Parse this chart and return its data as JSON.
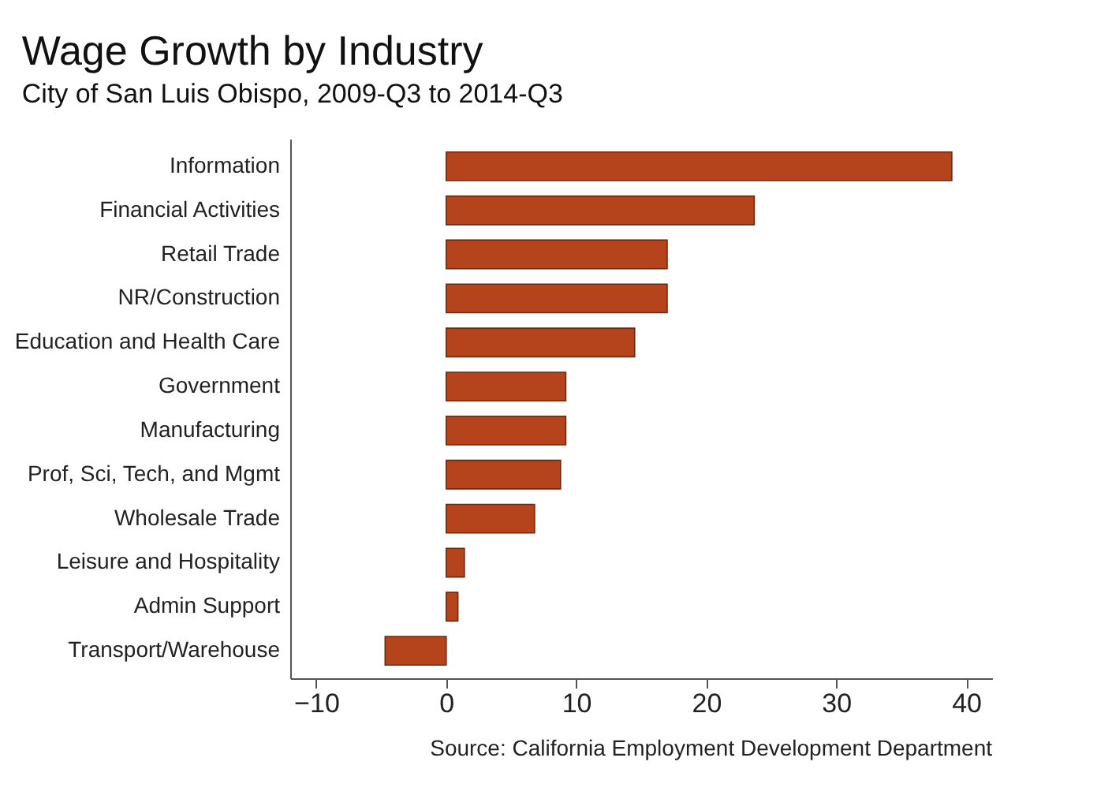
{
  "chart_data": {
    "type": "bar",
    "orientation": "horizontal",
    "title": "Wage Growth by Industry",
    "subtitle": "City of San Luis Obispo, 2009-Q3 to 2014-Q3",
    "categories": [
      "Information",
      "Financial Activities",
      "Retail Trade",
      "NR/Construction",
      "Education and Health Care",
      "Government",
      "Manufacturing",
      "Prof, Sci, Tech, and Mgmt",
      "Wholesale Trade",
      "Leisure and Hospitality",
      "Admin Support",
      "Transport/Warehouse"
    ],
    "values": [
      38.9,
      23.7,
      17.0,
      17.0,
      14.5,
      9.2,
      9.2,
      8.8,
      6.8,
      1.4,
      0.9,
      -4.7
    ],
    "color": "#b5441c",
    "xlim": [
      -12,
      42
    ],
    "xticks": [
      -10,
      0,
      10,
      20,
      30,
      40
    ],
    "grid": false,
    "annotations": [
      "Source: California Employment Development Department"
    ]
  }
}
